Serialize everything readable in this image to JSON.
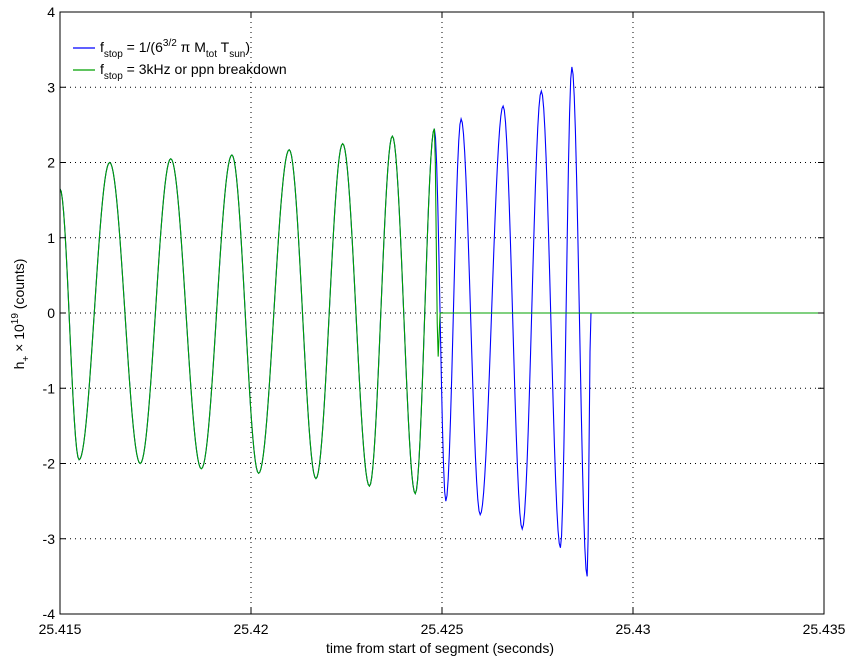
{
  "chart_data": {
    "type": "line",
    "xlabel": "time from start of segment (seconds)",
    "xlim": [
      25.415,
      25.435
    ],
    "ylim": [
      -4,
      4
    ],
    "xticks": [
      25.415,
      25.42,
      25.425,
      25.43,
      25.435
    ],
    "xtick_labels": [
      "25.415",
      "25.42",
      "25.425",
      "25.43",
      "25.435"
    ],
    "yticks": [
      -4,
      -3,
      -2,
      -1,
      0,
      1,
      2,
      3,
      4
    ],
    "ytick_labels": [
      "-4",
      "-3",
      "-2",
      "-1",
      "0",
      "1",
      "2",
      "3",
      "4"
    ],
    "grid": true,
    "legend_position": "top-left",
    "series": [
      {
        "name": "f_stop = 1/(6^{3/2} π M_tot T_sun)",
        "color": "#0000ff",
        "extrema": [
          [
            25.415,
            1.65
          ],
          [
            25.4155,
            -1.95
          ],
          [
            25.4163,
            2.0
          ],
          [
            25.4171,
            -2.0
          ],
          [
            25.4179,
            2.05
          ],
          [
            25.4187,
            -2.07
          ],
          [
            25.4195,
            2.1
          ],
          [
            25.4202,
            -2.13
          ],
          [
            25.421,
            2.17
          ],
          [
            25.4217,
            -2.2
          ],
          [
            25.4224,
            2.25
          ],
          [
            25.4231,
            -2.3
          ],
          [
            25.4237,
            2.35
          ],
          [
            25.4243,
            -2.4
          ],
          [
            25.4248,
            2.45
          ],
          [
            25.4251,
            -2.5
          ],
          [
            25.4255,
            2.58
          ],
          [
            25.426,
            -2.68
          ],
          [
            25.4266,
            2.75
          ],
          [
            25.4271,
            -2.87
          ],
          [
            25.4276,
            2.95
          ],
          [
            25.4281,
            -3.12
          ],
          [
            25.4284,
            3.27
          ],
          [
            25.4288,
            -3.5
          ],
          [
            25.4289,
            0
          ],
          [
            25.435,
            0
          ]
        ]
      },
      {
        "name": "f_stop = 3kHz or ppn breakdown",
        "color": "#00a000",
        "extrema": [
          [
            25.415,
            1.65
          ],
          [
            25.4155,
            -1.95
          ],
          [
            25.4163,
            2.0
          ],
          [
            25.4171,
            -2.0
          ],
          [
            25.4179,
            2.05
          ],
          [
            25.4187,
            -2.07
          ],
          [
            25.4195,
            2.1
          ],
          [
            25.4202,
            -2.13
          ],
          [
            25.421,
            2.17
          ],
          [
            25.4217,
            -2.2
          ],
          [
            25.4224,
            2.25
          ],
          [
            25.4231,
            -2.3
          ],
          [
            25.4237,
            2.35
          ],
          [
            25.4243,
            -2.4
          ],
          [
            25.4248,
            2.45
          ],
          [
            25.4249,
            -0.58
          ],
          [
            25.42495,
            0
          ],
          [
            25.435,
            0
          ]
        ]
      }
    ]
  }
}
